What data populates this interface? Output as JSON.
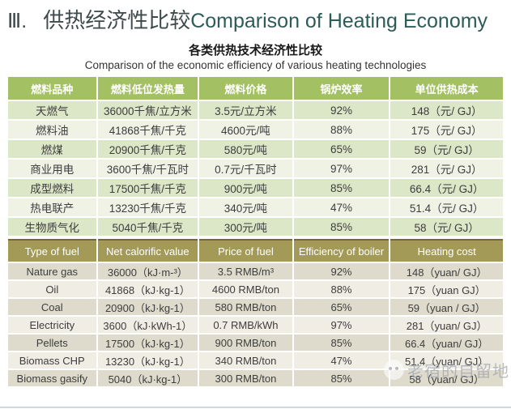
{
  "title": {
    "number": "Ⅲ.",
    "zh": "供热经济性比较",
    "en": "Comparison of Heating Economy"
  },
  "subtitle": {
    "zh": "各类供热技术经济性比较",
    "en": "Comparison of the economic efficiency of various heating technologies"
  },
  "table_zh": {
    "headers": [
      "燃料品种",
      "燃料低位发热量",
      "燃料价格",
      "锅炉效率",
      "单位供热成本"
    ],
    "rows": [
      [
        "天燃气",
        "36000千焦/立方米",
        "3.5元/立方米",
        "92%",
        "148（元/ GJ）"
      ],
      [
        "燃料油",
        "41868千焦/千克",
        "4600元/吨",
        "88%",
        "175（元/ GJ）"
      ],
      [
        "燃煤",
        "20900千焦/千克",
        "580元/吨",
        "65%",
        "59（元/ GJ）"
      ],
      [
        "商业用电",
        "3600千焦/千瓦时",
        "0.7元/千瓦时",
        "97%",
        "281（元/ GJ）"
      ],
      [
        "成型燃料",
        "17500千焦/千克",
        "900元/吨",
        "85%",
        "66.4（元/ GJ）"
      ],
      [
        "热电联产",
        "13230千焦/千克",
        "340元/吨",
        "47%",
        "51.4（元/ GJ）"
      ],
      [
        "生物质气化",
        "5040千焦/千克",
        "300元/吨",
        "85%",
        "58（元/ GJ）"
      ]
    ]
  },
  "table_en": {
    "headers": [
      "Type of fuel",
      "Net calorific value",
      "Price of  fuel",
      "Efficiency of  boiler",
      "Heating cost"
    ],
    "rows": [
      [
        "Nature gas",
        "36000（kJ·m-³）",
        "3.5 RMB/m³",
        "92%",
        "148（yuan/ GJ）"
      ],
      [
        "Oil",
        "41868（kJ·kg-1）",
        "4600 RMB/ton",
        "88%",
        "175（yuan GJ）"
      ],
      [
        "Coal",
        "20900（kJ·kg-1）",
        "580 RMB/ton",
        "65%",
        "59（yuan / GJ）"
      ],
      [
        "Electricity",
        "3600（kJ·kWh-1）",
        "0.7 RMB/kWh",
        "97%",
        "281（yuan/ GJ）"
      ],
      [
        "Pellets",
        "17500（kJ·kg-1）",
        "900 RMB/ton",
        "85%",
        "66.4（yuan/ GJ）"
      ],
      [
        "Biomass CHP",
        "13230（kJ·kg-1）",
        "340 RMB/ton",
        "47%",
        "51.4（yuan/ GJ）"
      ],
      [
        "Biomass gasify",
        "5040（kJ·kg-1）",
        "300 RMB/ton",
        "85%",
        "58（yuan/ GJ）"
      ]
    ]
  },
  "watermark": {
    "text": "老宿的自留地",
    "icon": "wechat-icon"
  },
  "colors": {
    "title_en": "#2d5c58",
    "zh_header_bg": "#a3c062",
    "zh_row_odd": "#dce7c8",
    "zh_row_even": "#f0f2e6",
    "en_header_bg": "#a39a57",
    "en_header_border": "#75692f",
    "en_row_odd": "#dfdbcc",
    "en_row_even": "#efede4",
    "bottom_line": "#ccd9e7"
  }
}
